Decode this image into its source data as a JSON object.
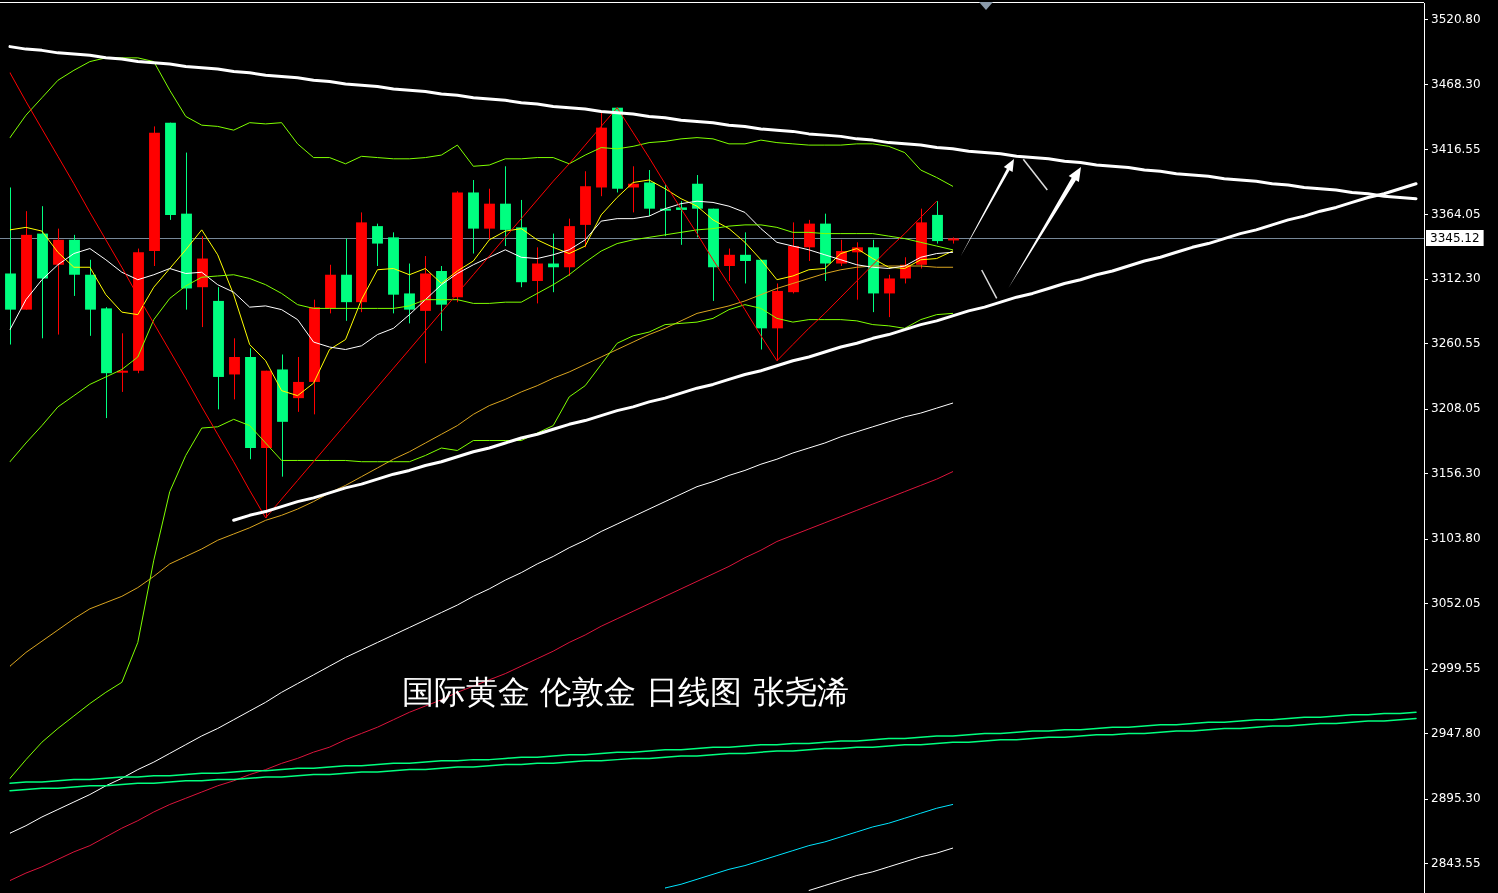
{
  "chart_data": {
    "type": "candlestick",
    "title": "国际黄金 伦敦金 日线图 张尧浠",
    "categories": [
      null,
      null,
      null,
      null,
      null,
      null,
      null,
      null,
      null,
      null,
      null,
      null,
      null,
      null,
      null,
      null,
      null,
      null,
      null,
      null,
      null,
      null,
      null,
      null,
      null,
      null,
      null,
      null,
      null,
      null,
      null,
      null,
      null,
      null,
      null,
      null,
      null,
      null,
      null,
      null,
      null,
      null,
      null,
      null,
      null,
      null,
      null,
      null,
      null,
      null,
      null,
      null,
      null,
      null,
      null,
      null,
      null,
      null,
      null,
      null,
      null,
      null,
      null,
      null,
      null,
      null,
      null,
      null,
      null,
      null,
      null,
      null,
      null,
      null,
      null,
      null,
      null,
      null,
      null,
      null,
      null,
      null,
      null,
      null,
      null,
      null,
      null,
      null,
      null
    ],
    "ohlc": [
      [
        3317,
        3386,
        3260,
        3288
      ],
      [
        3288,
        3367,
        3288,
        3348
      ],
      [
        3349,
        3371,
        3265,
        3313
      ],
      [
        3324,
        3353,
        3268,
        3344
      ],
      [
        3344,
        3348,
        3299,
        3316
      ],
      [
        3316,
        3328,
        3267,
        3288
      ],
      [
        3289,
        3290,
        3201,
        3237
      ],
      [
        3238,
        3269,
        3222,
        3239
      ],
      [
        3239,
        3337,
        3237,
        3334
      ],
      [
        3335,
        3435,
        3323,
        3430
      ],
      [
        3438,
        3438,
        3360,
        3364
      ],
      [
        3365,
        3414,
        3288,
        3305
      ],
      [
        3306,
        3347,
        3274,
        3329
      ],
      [
        3295,
        3306,
        3208,
        3234
      ],
      [
        3236,
        3265,
        3216,
        3250
      ],
      [
        3250,
        3257,
        3168,
        3177
      ],
      [
        3177,
        3239,
        3121,
        3239
      ],
      [
        3240,
        3252,
        3154,
        3198
      ],
      [
        3217,
        3250,
        3206,
        3230
      ],
      [
        3230,
        3296,
        3204,
        3290
      ],
      [
        3289,
        3324,
        3285,
        3316
      ],
      [
        3316,
        3345,
        3279,
        3294
      ],
      [
        3294,
        3366,
        3286,
        3358
      ],
      [
        3355,
        3357,
        3323,
        3341
      ],
      [
        3346,
        3350,
        3285,
        3300
      ],
      [
        3301,
        3325,
        3277,
        3288
      ],
      [
        3287,
        3331,
        3245,
        3317
      ],
      [
        3319,
        3323,
        3271,
        3292
      ],
      [
        3298,
        3383,
        3294,
        3382
      ],
      [
        3382,
        3392,
        3333,
        3353
      ],
      [
        3353,
        3385,
        3344,
        3373
      ],
      [
        3373,
        3403,
        3339,
        3352
      ],
      [
        3354,
        3376,
        3306,
        3310
      ],
      [
        3311,
        3338,
        3293,
        3325
      ],
      [
        3325,
        3349,
        3302,
        3322
      ],
      [
        3322,
        3361,
        3315,
        3355
      ],
      [
        3356,
        3399,
        3338,
        3387
      ],
      [
        3386,
        3446,
        3379,
        3434
      ],
      [
        3450,
        3450,
        3382,
        3385
      ],
      [
        3386,
        3403,
        3366,
        3389
      ],
      [
        3390,
        3400,
        3363,
        3369
      ],
      [
        3369,
        3388,
        3347,
        3368
      ],
      [
        3370,
        3375,
        3340,
        3368
      ],
      [
        3389,
        3396,
        3346,
        3369
      ],
      [
        3369,
        3369,
        3295,
        3322
      ],
      [
        3323,
        3337,
        3311,
        3332
      ],
      [
        3332,
        3350,
        3309,
        3327
      ],
      [
        3328,
        3328,
        3256,
        3273
      ],
      [
        3273,
        3309,
        3247,
        3303
      ],
      [
        3302,
        3358,
        3301,
        3339
      ],
      [
        3338,
        3360,
        3327,
        3357
      ],
      [
        3357,
        3365,
        3311,
        3325
      ],
      [
        3325,
        3344,
        3323,
        3335
      ],
      [
        3334,
        3342,
        3296,
        3338
      ],
      [
        3338,
        3344,
        3286,
        3301
      ],
      [
        3301,
        3316,
        3282,
        3313
      ],
      [
        3313,
        3330,
        3309,
        3324
      ],
      [
        3324,
        3369,
        3321,
        3358
      ],
      [
        3364,
        3375,
        3341,
        3343
      ],
      [
        3344,
        3346,
        3341,
        3345.12
      ],
      null,
      null,
      null,
      null,
      null,
      null,
      null,
      null,
      null,
      null,
      null,
      null,
      null,
      null,
      null,
      null,
      null,
      null,
      null,
      null,
      null,
      null,
      null,
      null,
      null,
      null,
      null,
      null,
      null
    ],
    "colors": [
      "#00ff80",
      "#ff0000",
      "#00ff80",
      "#ff0000",
      "#00ff80",
      "#00ff80",
      "#00ff80",
      "#ff0000",
      "#ff0000",
      "#ff0000",
      "#00ff80",
      "#00ff80",
      "#ff0000",
      "#00ff80",
      "#ff0000",
      "#00ff80",
      "#ff0000",
      "#00ff80",
      "#ff0000",
      "#ff0000",
      "#ff0000",
      "#00ff80",
      "#ff0000",
      "#00ff80",
      "#00ff80",
      "#00ff80",
      "#ff0000",
      "#00ff80",
      "#ff0000",
      "#00ff80",
      "#ff0000",
      "#00ff80",
      "#00ff80",
      "#ff0000",
      "#00ff80",
      "#ff0000",
      "#ff0000",
      "#ff0000",
      "#00ff80",
      "#ff0000",
      "#00ff80",
      "#00ff80",
      "#00ff80",
      "#00ff80",
      "#00ff80",
      "#ff0000",
      "#00ff80",
      "#00ff80",
      "#ff0000",
      "#ff0000",
      "#ff0000",
      "#00ff80",
      "#ff0000",
      "#ff0000",
      "#00ff80",
      "#ff0000",
      "#ff0000",
      "#ff0000",
      "#00ff80",
      "#ff0000",
      null,
      null,
      null,
      null,
      null,
      null,
      null,
      null,
      null,
      null,
      null,
      null,
      null,
      null,
      null,
      null,
      null,
      null,
      null,
      null,
      null,
      null,
      null,
      null,
      null,
      null,
      null,
      null,
      null
    ],
    "series": [
      {
        "type": "line",
        "color": "#ffffff",
        "values": [
          3499,
          3497,
          3496,
          3494,
          3493,
          3492,
          3490,
          3489,
          3487,
          3486,
          3485,
          3483,
          3482,
          3481,
          3479,
          3478,
          3476,
          3475,
          3474,
          3472,
          3471,
          3469,
          3468,
          3467,
          3465,
          3464,
          3463,
          3461,
          3460,
          3458,
          3457,
          3456,
          3454,
          3453,
          3451,
          3450,
          3449,
          3447,
          3446,
          3445,
          3443,
          3442,
          3440,
          3439,
          3438,
          3436,
          3435,
          3433,
          3432,
          3431,
          3429,
          3428,
          3427,
          3425,
          3424,
          3422,
          3421,
          3420,
          3418,
          3417,
          3415,
          3414,
          3413,
          3411,
          3410,
          3409,
          3407,
          3406,
          3404,
          3403,
          3402,
          3400,
          3399,
          3397,
          3396,
          3395,
          3393,
          3392,
          3391,
          3389,
          3388,
          3386,
          3385,
          3384,
          3382,
          3381,
          3379,
          3378,
          3377
        ]
      },
      {
        "type": "line",
        "color": "#ffffff",
        "values": [
          null,
          null,
          null,
          null,
          null,
          null,
          null,
          null,
          null,
          null,
          null,
          null,
          null,
          null,
          3119,
          3123,
          3126,
          3130,
          3134,
          3137,
          3141,
          3145,
          3148,
          3152,
          3156,
          3159,
          3163,
          3166,
          3170,
          3174,
          3177,
          3181,
          3185,
          3188,
          3192,
          3196,
          3199,
          3203,
          3207,
          3210,
          3214,
          3217,
          3221,
          3225,
          3228,
          3232,
          3236,
          3239,
          3243,
          3247,
          3250,
          3254,
          3258,
          3261,
          3265,
          3268,
          3272,
          3276,
          3279,
          3283,
          3287,
          3290,
          3294,
          3298,
          3301,
          3305,
          3309,
          3312,
          3316,
          3319,
          3323,
          3327,
          3330,
          3334,
          3338,
          3341,
          3345,
          3349,
          3352,
          3356,
          3360,
          3363,
          3367,
          3370,
          3374,
          3378,
          3381,
          3385,
          3389
        ]
      },
      {
        "type": "line",
        "color": "#00ff7f",
        "values": [
          2908,
          2909,
          2909,
          2910,
          2911,
          2911,
          2912,
          2913,
          2913,
          2914,
          2914,
          2915,
          2916,
          2916,
          2917,
          2918,
          2918,
          2919,
          2920,
          2920,
          2921,
          2922,
          2922,
          2923,
          2924,
          2924,
          2925,
          2926,
          2926,
          2927,
          2927,
          2928,
          2929,
          2929,
          2930,
          2931,
          2931,
          2932,
          2933,
          2933,
          2934,
          2935,
          2935,
          2936,
          2937,
          2937,
          2938,
          2939,
          2939,
          2940,
          2940,
          2941,
          2942,
          2942,
          2943,
          2944,
          2944,
          2945,
          2946,
          2946,
          2947,
          2948,
          2948,
          2949,
          2950,
          2950,
          2951,
          2951,
          2952,
          2953,
          2953,
          2954,
          2955,
          2955,
          2956,
          2957,
          2957,
          2958,
          2959,
          2959,
          2960,
          2961,
          2961,
          2962,
          2963,
          2963,
          2964,
          2964,
          2965
        ]
      },
      {
        "type": "line",
        "color": "#00ff7f",
        "values": [
          2902,
          2903,
          2904,
          2904,
          2905,
          2906,
          2906,
          2907,
          2908,
          2908,
          2909,
          2910,
          2910,
          2911,
          2911,
          2912,
          2913,
          2913,
          2914,
          2915,
          2915,
          2916,
          2917,
          2917,
          2918,
          2919,
          2919,
          2920,
          2921,
          2921,
          2922,
          2923,
          2923,
          2924,
          2924,
          2925,
          2926,
          2926,
          2927,
          2928,
          2928,
          2929,
          2930,
          2930,
          2931,
          2932,
          2932,
          2933,
          2934,
          2934,
          2935,
          2936,
          2936,
          2937,
          2937,
          2938,
          2939,
          2939,
          2940,
          2941,
          2941,
          2942,
          2943,
          2943,
          2944,
          2945,
          2945,
          2946,
          2947,
          2947,
          2948,
          2948,
          2949,
          2950,
          2950,
          2951,
          2952,
          2952,
          2953,
          2954,
          2954,
          2955,
          2956,
          2956,
          2957,
          2958,
          2958,
          2959,
          2960
        ]
      },
      {
        "type": "line",
        "color": "#ff0000",
        "values": [
          3478,
          3455,
          3433,
          3411,
          3389,
          3366,
          3344,
          3322,
          3299,
          3277,
          3255,
          3233,
          3210,
          3188,
          3166,
          3143,
          3121,
          3136,
          3151,
          3166,
          3181,
          3196,
          3211,
          3226,
          3241,
          3256,
          3271,
          3286,
          3301,
          3316,
          3331,
          3346,
          3361,
          3376,
          3391,
          3405,
          3420,
          3435,
          3450,
          3430,
          3410,
          3389,
          3369,
          3349,
          3328,
          3308,
          3288,
          3267,
          3247,
          3260,
          3273,
          3285,
          3298,
          3311,
          3324,
          3337,
          3349,
          3362,
          3375,
          null,
          null,
          null,
          null,
          null,
          null,
          null,
          null,
          null,
          null,
          null,
          null,
          null,
          null,
          null,
          null,
          null,
          null,
          null,
          null,
          null,
          null,
          null,
          null,
          null,
          null,
          null,
          null,
          null,
          null
        ]
      },
      {
        "type": "line",
        "color": "#7fff00",
        "values": [
          3426,
          3444,
          3458,
          3472,
          3480,
          3487,
          3490,
          3490,
          3490,
          3487,
          3464,
          3443,
          3436,
          3435,
          3432,
          3438,
          3437,
          3438,
          3421,
          3410,
          3410,
          3405,
          3411,
          3410,
          3409,
          3409,
          3410,
          3412,
          3420,
          3403,
          3404,
          3409,
          3409,
          3410,
          3410,
          3405,
          3412,
          3418,
          3417,
          3419,
          3422,
          3423,
          3425,
          3426,
          3425,
          3421,
          3421,
          3424,
          3422,
          3421,
          3420,
          3420,
          3420,
          3421,
          3421,
          3419,
          3414,
          3400,
          3394,
          3387,
          null,
          null,
          null,
          null,
          null,
          null,
          null,
          null,
          null,
          null,
          null,
          null,
          null,
          null,
          null,
          null,
          null,
          null,
          null,
          null,
          null,
          null,
          null,
          null,
          null,
          null,
          null,
          null,
          null
        ]
      },
      {
        "type": "line",
        "color": "#7fff00",
        "values": [
          3166,
          3181,
          3195,
          3210,
          3219,
          3228,
          3234,
          3240,
          3250,
          3280,
          3297,
          3307,
          3314,
          3315,
          3316,
          3313,
          3308,
          3301,
          3292,
          3289,
          3289,
          3289,
          3289,
          3289,
          3289,
          3291,
          3296,
          3296,
          3296,
          3293,
          3293,
          3294,
          3294,
          3301,
          3308,
          3316,
          3326,
          3335,
          3341,
          3344,
          3346,
          3348,
          3350,
          3352,
          3353,
          3355,
          3356,
          3356,
          3354,
          3350,
          3350,
          3349,
          3349,
          3349,
          3349,
          3347,
          3345,
          3342,
          3339,
          3336,
          null,
          null,
          null,
          null,
          null,
          null,
          null,
          null,
          null,
          null,
          null,
          null,
          null,
          null,
          null,
          null,
          null,
          null,
          null,
          null,
          null,
          null,
          null,
          null,
          null,
          null,
          null,
          null,
          null
        ]
      },
      {
        "type": "line",
        "color": "#7fff00",
        "values": [
          2912,
          2927,
          2941,
          2952,
          2962,
          2972,
          2981,
          2989,
          3021,
          3087,
          3142,
          3171,
          3193,
          3194,
          3200,
          3195,
          3181,
          3167,
          3167,
          3167,
          3167,
          3167,
          3166,
          3166,
          3166,
          3166,
          3171,
          3177,
          3175,
          3183,
          3183,
          3183,
          3183,
          3189,
          3195,
          3218,
          3227,
          3244,
          3261,
          3267,
          3270,
          3276,
          3277,
          3278,
          3281,
          3288,
          3292,
          3289,
          3281,
          3278,
          3280,
          3280,
          3280,
          3279,
          3276,
          3275,
          3273,
          3280,
          3284,
          3285,
          null,
          null,
          null,
          null,
          null,
          null,
          null,
          null,
          null,
          null,
          null,
          null,
          null,
          null,
          null,
          null,
          null,
          null,
          null,
          null,
          null,
          null,
          null,
          null,
          null,
          null,
          null,
          null,
          null
        ]
      },
      {
        "type": "line",
        "color": "#ffffff",
        "values": [
          3272,
          3296,
          3312,
          3324,
          3333,
          3337,
          3328,
          3318,
          3312,
          3316,
          3321,
          3317,
          3318,
          3308,
          3302,
          3290,
          3291,
          3288,
          3280,
          3262,
          3258,
          3256,
          3259,
          3268,
          3273,
          3284,
          3296,
          3308,
          3317,
          3324,
          3330,
          3336,
          3330,
          3329,
          3332,
          3336,
          3344,
          3359,
          3361,
          3361,
          3363,
          3369,
          3373,
          3375,
          3374,
          3371,
          3366,
          3353,
          3342,
          3339,
          3336,
          3332,
          3328,
          3324,
          3322,
          3321,
          3323,
          3330,
          3333,
          3334,
          null,
          null,
          null,
          null,
          null,
          null,
          null,
          null,
          null,
          null,
          null,
          null,
          null,
          null,
          null,
          null,
          null,
          null,
          null,
          null,
          null,
          null,
          null,
          null,
          null,
          null,
          null,
          null,
          null
        ]
      },
      {
        "type": "line",
        "color": "#ffff00",
        "values": [
          3352,
          3354,
          3351,
          3334,
          3322,
          3322,
          3300,
          3286,
          3284,
          3306,
          3321,
          3336,
          3352,
          3332,
          3300,
          3260,
          3247,
          3223,
          3219,
          3229,
          3256,
          3264,
          3296,
          3320,
          3321,
          3316,
          3321,
          3309,
          3319,
          3327,
          3344,
          3351,
          3353,
          3344,
          3338,
          3333,
          3339,
          3364,
          3378,
          3390,
          3392,
          3385,
          3377,
          3371,
          3360,
          3353,
          3342,
          3328,
          3312,
          3315,
          3320,
          3321,
          3333,
          3337,
          3329,
          3322,
          3321,
          3328,
          3329,
          3335,
          null,
          null,
          null,
          null,
          null,
          null,
          null,
          null,
          null,
          null,
          null,
          null,
          null,
          null,
          null,
          null,
          null,
          null,
          null,
          null,
          null,
          null,
          null,
          null,
          null,
          null,
          null,
          null,
          null
        ]
      },
      {
        "type": "line",
        "color": "#daa520",
        "values": [
          3002,
          3013,
          3022,
          3031,
          3040,
          3048,
          3053,
          3058,
          3065,
          3074,
          3084,
          3090,
          3096,
          3103,
          3108,
          3113,
          3119,
          3123,
          3128,
          3134,
          3141,
          3147,
          3154,
          3161,
          3168,
          3174,
          3181,
          3188,
          3195,
          3204,
          3211,
          3216,
          3222,
          3227,
          3233,
          3238,
          3244,
          3250,
          3256,
          3262,
          3268,
          3273,
          3279,
          3285,
          3288,
          3291,
          3295,
          3300,
          3305,
          3309,
          3313,
          3317,
          3320,
          3322,
          3323,
          3323,
          3323,
          3323,
          3322,
          3322,
          null,
          null,
          null,
          null,
          null,
          null,
          null,
          null,
          null,
          null,
          null,
          null,
          null,
          null,
          null,
          null,
          null,
          null,
          null,
          null,
          null,
          null,
          null,
          null,
          null,
          null,
          null,
          null,
          null
        ]
      },
      {
        "type": "line",
        "color": "#ffffff",
        "values": [
          2868,
          2874,
          2881,
          2887,
          2893,
          2899,
          2906,
          2912,
          2919,
          2925,
          2932,
          2939,
          2946,
          2952,
          2959,
          2966,
          2973,
          2981,
          2988,
          2995,
          3002,
          3009,
          3015,
          3021,
          3027,
          3033,
          3039,
          3045,
          3051,
          3058,
          3064,
          3071,
          3077,
          3084,
          3090,
          3097,
          3103,
          3110,
          3116,
          3122,
          3128,
          3134,
          3140,
          3146,
          3150,
          3155,
          3159,
          3164,
          3168,
          3173,
          3177,
          3181,
          3186,
          3190,
          3194,
          3198,
          3202,
          3205,
          3209,
          3213,
          null,
          null,
          null,
          null,
          null,
          null,
          null,
          null,
          null,
          null,
          null,
          null,
          null,
          null,
          null,
          null,
          null,
          null,
          null,
          null,
          null,
          null,
          null,
          null,
          null,
          null,
          null,
          null,
          null
        ]
      },
      {
        "type": "line",
        "color": "#dc143c",
        "values": [
          2830,
          2836,
          2841,
          2847,
          2853,
          2858,
          2865,
          2872,
          2878,
          2885,
          2891,
          2896,
          2901,
          2906,
          2910,
          2915,
          2919,
          2924,
          2928,
          2933,
          2937,
          2943,
          2948,
          2953,
          2959,
          2965,
          2970,
          2975,
          2981,
          2986,
          2991,
          2996,
          3002,
          3008,
          3014,
          3021,
          3027,
          3034,
          3040,
          3046,
          3052,
          3058,
          3064,
          3070,
          3076,
          3082,
          3089,
          3095,
          3102,
          3107,
          3112,
          3117,
          3122,
          3127,
          3132,
          3137,
          3142,
          3147,
          3152,
          3158,
          null,
          null,
          null,
          null,
          null,
          null,
          null,
          null,
          null,
          null,
          null,
          null,
          null,
          null,
          null,
          null,
          null,
          null,
          null,
          null,
          null,
          null,
          null,
          null,
          null,
          null,
          null,
          null,
          null
        ]
      },
      {
        "type": "line",
        "color": "#00e5ff",
        "values": [
          null,
          null,
          null,
          null,
          null,
          null,
          null,
          null,
          null,
          null,
          null,
          null,
          null,
          null,
          null,
          null,
          null,
          null,
          null,
          null,
          null,
          null,
          null,
          null,
          null,
          null,
          null,
          null,
          null,
          null,
          null,
          null,
          null,
          null,
          null,
          null,
          null,
          null,
          null,
          null,
          null,
          2824,
          2827,
          2831,
          2835,
          2839,
          2842,
          2846,
          2850,
          2854,
          2858,
          2861,
          2865,
          2869,
          2873,
          2876,
          2880,
          2884,
          2888,
          2891,
          null,
          null,
          null,
          null,
          null,
          null,
          null,
          null,
          null,
          null,
          null,
          null,
          null,
          null,
          null,
          null,
          null,
          null,
          null,
          null,
          null,
          null,
          null,
          null,
          null,
          null,
          null,
          null,
          null
        ]
      },
      {
        "type": "line",
        "color": "#ffffff",
        "values": [
          null,
          null,
          null,
          null,
          null,
          null,
          null,
          null,
          null,
          null,
          null,
          null,
          null,
          null,
          null,
          null,
          null,
          null,
          null,
          null,
          null,
          null,
          null,
          null,
          null,
          null,
          null,
          null,
          null,
          null,
          null,
          null,
          null,
          null,
          null,
          null,
          null,
          null,
          null,
          null,
          null,
          null,
          null,
          null,
          null,
          null,
          null,
          null,
          null,
          null,
          2822,
          2826,
          2830,
          2834,
          2837,
          2841,
          2845,
          2849,
          2852,
          2856,
          null,
          null,
          null,
          null,
          null,
          null,
          null,
          null,
          null,
          null,
          null,
          null,
          null,
          null,
          null,
          null,
          null,
          null,
          null,
          null,
          null,
          null,
          null,
          null,
          null,
          null,
          null,
          null,
          null
        ]
      }
    ],
    "ylim": [
      2820,
      3534
    ],
    "yticks": [
      {
        "value": 3520.8,
        "label": "3520.80"
      },
      {
        "value": 3468.3,
        "label": "3468.30"
      },
      {
        "value": 3416.55,
        "label": "3416.55"
      },
      {
        "value": 3364.05,
        "label": "3364.05"
      },
      {
        "value": 3312.3,
        "label": "3312.30"
      },
      {
        "value": 3260.55,
        "label": "3260.55"
      },
      {
        "value": 3208.05,
        "label": "3208.05"
      },
      {
        "value": 3156.3,
        "label": "3156.30"
      },
      {
        "value": 3103.8,
        "label": "3103.80"
      },
      {
        "value": 3052.05,
        "label": "3052.05"
      },
      {
        "value": 2999.55,
        "label": "2999.55"
      },
      {
        "value": 2947.8,
        "label": "2947.80"
      },
      {
        "value": 2895.3,
        "label": "2895.30"
      },
      {
        "value": 2843.55,
        "label": "2843.55"
      }
    ],
    "ref_lines": [
      {
        "axis": "y",
        "value": 3345.12,
        "label": "3345.12",
        "color": "#778899"
      }
    ],
    "tick_labels": "y"
  }
}
